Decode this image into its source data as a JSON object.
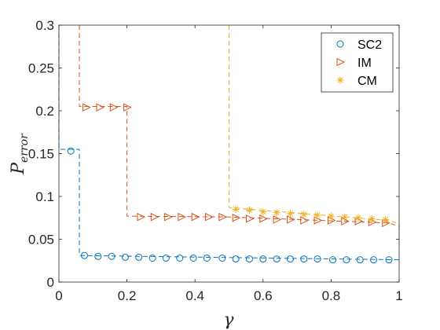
{
  "chart_data": {
    "type": "line",
    "xlabel": "γ",
    "ylabel_main": "P",
    "ylabel_sub": "error",
    "xlim": [
      0,
      1
    ],
    "ylim": [
      0,
      0.3
    ],
    "xticks": [
      0,
      0.2,
      0.4,
      0.6,
      0.8,
      1
    ],
    "xtick_labels": [
      "0",
      "0.2",
      "0.4",
      "0.6",
      "0.8",
      "1"
    ],
    "yticks": [
      0,
      0.05,
      0.1,
      0.15,
      0.2,
      0.25,
      0.3
    ],
    "ytick_labels": [
      "0",
      "0.05",
      "0.1",
      "0.15",
      "0.2",
      "0.25",
      "0.3"
    ],
    "grid": false,
    "legend_position": "top-right",
    "series": [
      {
        "name": "SC2",
        "color": "#0072BD",
        "marker": "circle",
        "line": [
          [
            0,
            0.3
          ],
          [
            0,
            0.155
          ],
          [
            0.06,
            0.155
          ],
          [
            0.06,
            0.031
          ],
          [
            1,
            0.026
          ],
          [
            1,
            0.03
          ]
        ],
        "markers": [
          [
            0.035,
            0.153
          ],
          [
            0.075,
            0.031
          ],
          [
            0.115,
            0.03
          ],
          [
            0.155,
            0.03
          ],
          [
            0.195,
            0.029
          ],
          [
            0.235,
            0.029
          ],
          [
            0.275,
            0.028
          ],
          [
            0.315,
            0.028
          ],
          [
            0.355,
            0.028
          ],
          [
            0.395,
            0.028
          ],
          [
            0.435,
            0.028
          ],
          [
            0.48,
            0.028
          ],
          [
            0.52,
            0.027
          ],
          [
            0.56,
            0.027
          ],
          [
            0.6,
            0.027
          ],
          [
            0.64,
            0.027
          ],
          [
            0.68,
            0.027
          ],
          [
            0.72,
            0.027
          ],
          [
            0.76,
            0.027
          ],
          [
            0.805,
            0.026
          ],
          [
            0.845,
            0.026
          ],
          [
            0.885,
            0.026
          ],
          [
            0.925,
            0.026
          ],
          [
            0.97,
            0.026
          ]
        ]
      },
      {
        "name": "IM",
        "color": "#D95319",
        "marker": "triangle-right",
        "line": [
          [
            0.06,
            0.3
          ],
          [
            0.06,
            0.205
          ],
          [
            0.2,
            0.205
          ],
          [
            0.2,
            0.077
          ],
          [
            0.5,
            0.076
          ],
          [
            0.97,
            0.069
          ],
          [
            1,
            0.065
          ],
          [
            1,
            0.045
          ]
        ],
        "markers": [
          [
            0.08,
            0.204
          ],
          [
            0.12,
            0.204
          ],
          [
            0.16,
            0.204
          ],
          [
            0.2,
            0.204
          ],
          [
            0.24,
            0.076
          ],
          [
            0.28,
            0.076
          ],
          [
            0.32,
            0.076
          ],
          [
            0.36,
            0.076
          ],
          [
            0.4,
            0.076
          ],
          [
            0.44,
            0.076
          ],
          [
            0.48,
            0.076
          ],
          [
            0.52,
            0.075
          ],
          [
            0.56,
            0.074
          ],
          [
            0.6,
            0.074
          ],
          [
            0.64,
            0.073
          ],
          [
            0.68,
            0.073
          ],
          [
            0.72,
            0.072
          ],
          [
            0.76,
            0.072
          ],
          [
            0.8,
            0.072
          ],
          [
            0.84,
            0.071
          ],
          [
            0.88,
            0.071
          ],
          [
            0.92,
            0.07
          ],
          [
            0.96,
            0.069
          ]
        ]
      },
      {
        "name": "CM",
        "color": "#EDB120",
        "marker": "asterisk",
        "line": [
          [
            0.5,
            0.3
          ],
          [
            0.5,
            0.087
          ],
          [
            0.97,
            0.072
          ],
          [
            1,
            0.068
          ],
          [
            1,
            0.045
          ]
        ],
        "markers": [
          [
            0.52,
            0.085
          ],
          [
            0.56,
            0.084
          ],
          [
            0.6,
            0.082
          ],
          [
            0.64,
            0.081
          ],
          [
            0.68,
            0.08
          ],
          [
            0.72,
            0.079
          ],
          [
            0.76,
            0.078
          ],
          [
            0.8,
            0.077
          ],
          [
            0.84,
            0.076
          ],
          [
            0.88,
            0.075
          ],
          [
            0.92,
            0.074
          ],
          [
            0.96,
            0.073
          ]
        ]
      }
    ]
  }
}
